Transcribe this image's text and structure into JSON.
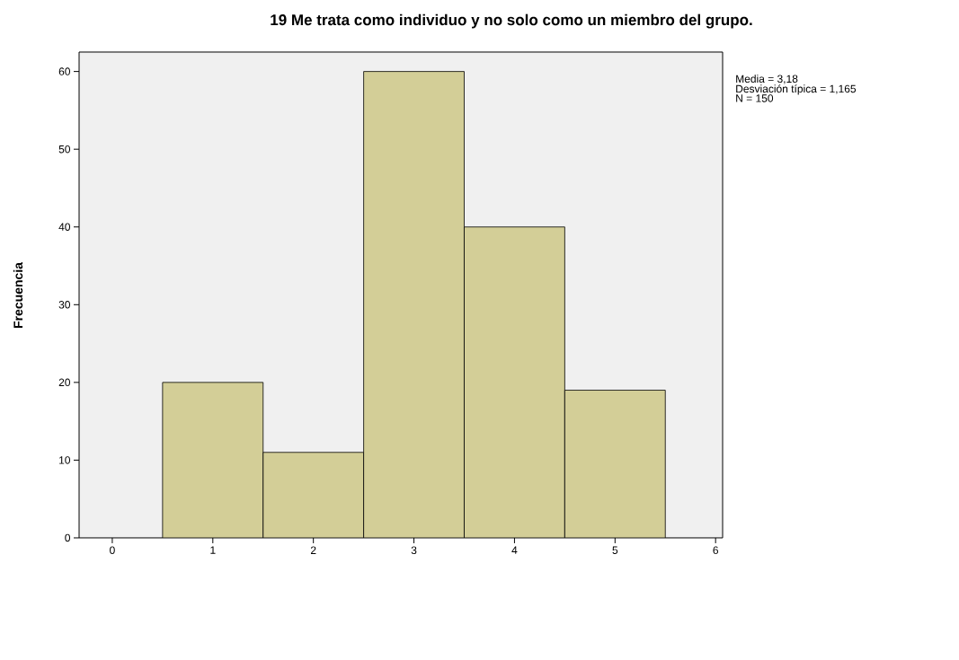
{
  "chart_data": {
    "type": "histogram",
    "title": "19 Me trata como individuo y  no solo como un miembro del grupo.",
    "ylabel": "Frecuencia",
    "bins": [
      0.5,
      1.5,
      2.5,
      3.5,
      4.5,
      5.5
    ],
    "values": [
      20,
      11,
      60,
      40,
      19
    ],
    "color": "#d3ce97",
    "xlim": [
      -0.33,
      6.07
    ],
    "ylim": [
      0,
      62.5
    ],
    "xticks": [
      0,
      1,
      2,
      3,
      4,
      5,
      6
    ],
    "yticks": [
      0,
      10,
      20,
      30,
      40,
      50,
      60
    ],
    "annotations": [
      "Media = 3,18",
      "Desviación típica = 1,165",
      "N = 150"
    ]
  }
}
